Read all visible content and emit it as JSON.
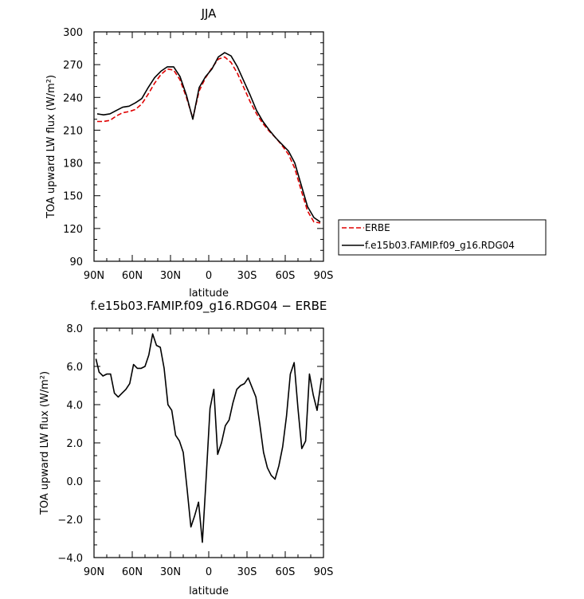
{
  "chart_data": [
    {
      "type": "line",
      "title": "JJA",
      "xlabel": "latitude",
      "ylabel": "TOA upward LW flux (W/m²)",
      "xticks": [
        "90N",
        "60N",
        "30N",
        "0",
        "30S",
        "60S",
        "90S"
      ],
      "yticks": [
        "300",
        "270",
        "240",
        "210",
        "180",
        "150",
        "120",
        "90"
      ],
      "xlim": [
        90,
        -90
      ],
      "ylim": [
        90,
        300
      ],
      "grid": false,
      "legend_position": "right",
      "series": [
        {
          "name": "ERBE",
          "color": "#e00000",
          "dash": "dashed",
          "x": [
            87.5,
            82.5,
            77.5,
            72.5,
            67.5,
            62.5,
            57.5,
            52.5,
            47.5,
            42.5,
            37.5,
            32.5,
            27.5,
            22.5,
            17.5,
            12.5,
            7.5,
            2.5,
            -2.5,
            -7.5,
            -12.5,
            -17.5,
            -22.5,
            -27.5,
            -32.5,
            -37.5,
            -42.5,
            -47.5,
            -52.5,
            -57.5,
            -62.5,
            -67.5,
            -72.5,
            -77.5,
            -82.5,
            -87.5
          ],
          "values": [
            218,
            218,
            219,
            223,
            226,
            227,
            229,
            234,
            243,
            253,
            261,
            266,
            265,
            256,
            240,
            221,
            246,
            258,
            267,
            275,
            277,
            272,
            262,
            249,
            236,
            225,
            216,
            209,
            203,
            196,
            188,
            175,
            155,
            136,
            126,
            125
          ]
        },
        {
          "name": "f.e15b03.FAMIP.f09_g16.RDG04",
          "color": "#000000",
          "dash": "solid",
          "x": [
            87.5,
            82.5,
            77.5,
            72.5,
            67.5,
            62.5,
            57.5,
            52.5,
            47.5,
            42.5,
            37.5,
            32.5,
            27.5,
            22.5,
            17.5,
            12.5,
            7.5,
            2.5,
            -2.5,
            -7.5,
            -12.5,
            -17.5,
            -22.5,
            -27.5,
            -32.5,
            -37.5,
            -42.5,
            -47.5,
            -52.5,
            -57.5,
            -62.5,
            -67.5,
            -72.5,
            -77.5,
            -82.5,
            -87.5
          ],
          "values": [
            225,
            224,
            225,
            228,
            231,
            232,
            235,
            239,
            249,
            258,
            264,
            268,
            268,
            259,
            242,
            220,
            249,
            259,
            266,
            277,
            281,
            278,
            268,
            255,
            242,
            228,
            218,
            210,
            203,
            197,
            191,
            180,
            160,
            140,
            130,
            126
          ]
        }
      ]
    },
    {
      "type": "line",
      "title": "f.e15b03.FAMIP.f09_g16.RDG04 − ERBE",
      "xlabel": "latitude",
      "ylabel": "TOA upward LW flux (W/m²)",
      "xticks": [
        "90N",
        "60N",
        "30N",
        "0",
        "30S",
        "60S",
        "90S"
      ],
      "yticks": [
        "8.0",
        "6.0",
        "4.0",
        "2.0",
        "0.0",
        "−2.0",
        "−4.0"
      ],
      "xlim": [
        90,
        -90
      ],
      "ylim": [
        -4,
        8
      ],
      "grid": false,
      "series": [
        {
          "color": "#000000",
          "x": [
            88.5,
            86,
            83,
            80,
            77,
            74,
            71,
            68,
            65,
            62,
            59,
            56,
            53,
            50,
            47,
            44,
            41,
            38,
            35,
            32,
            29,
            26,
            23,
            20,
            17,
            14,
            11,
            8,
            5,
            2,
            -1,
            -4,
            -7,
            -10,
            -13,
            -16,
            -19,
            -22,
            -25,
            -28,
            -31,
            -34,
            -37,
            -40,
            -43,
            -46,
            -49,
            -52,
            -55,
            -58,
            -61,
            -64,
            -67,
            -70,
            -73,
            -76,
            -79,
            -82,
            -85,
            -88.5
          ],
          "values": [
            6.4,
            5.7,
            5.5,
            5.6,
            5.6,
            4.6,
            4.4,
            4.6,
            4.8,
            5.1,
            6.1,
            5.9,
            5.9,
            6.0,
            6.6,
            7.7,
            7.1,
            7.0,
            5.9,
            4.0,
            3.7,
            2.4,
            2.1,
            1.5,
            -0.4,
            -2.4,
            -1.8,
            -1.1,
            -3.2,
            0.2,
            3.8,
            4.8,
            1.4,
            2.0,
            2.9,
            3.2,
            4.1,
            4.8,
            5.0,
            5.1,
            5.4,
            4.9,
            4.4,
            3.0,
            1.5,
            0.7,
            0.3,
            0.1,
            0.8,
            1.8,
            3.4,
            5.6,
            6.2,
            3.8,
            1.7,
            2.1,
            5.6,
            4.5,
            3.7,
            5.4
          ]
        }
      ]
    }
  ]
}
